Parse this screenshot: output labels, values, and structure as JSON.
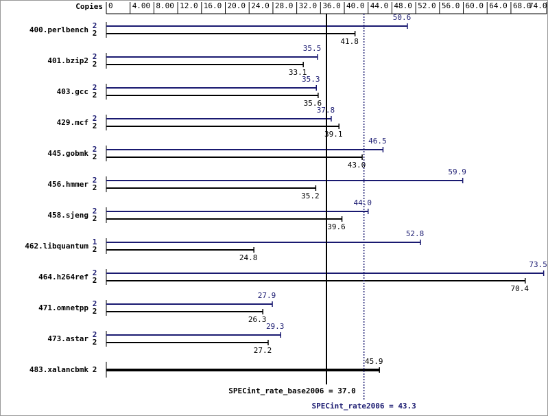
{
  "chart_data": {
    "type": "bar",
    "orientation": "horizontal",
    "axis_label": "Copies",
    "categories": [
      "400.perlbench",
      "401.bzip2",
      "403.gcc",
      "429.mcf",
      "445.gobmk",
      "456.hmmer",
      "458.sjeng",
      "462.libquantum",
      "464.h264ref",
      "471.omnetpp",
      "473.astar",
      "483.xalancbmk"
    ],
    "series": [
      {
        "color": "#191970",
        "copies": [
          2,
          2,
          2,
          2,
          2,
          2,
          2,
          1,
          2,
          2,
          2,
          null
        ],
        "values": [
          50.6,
          35.5,
          35.3,
          37.8,
          46.5,
          59.9,
          44.0,
          52.8,
          73.5,
          27.9,
          29.3,
          null
        ],
        "value_labels": [
          "50.6",
          "35.5",
          "35.3",
          "37.8",
          "46.5",
          "59.9",
          "44.0",
          "52.8",
          "73.5",
          "27.9",
          "29.3",
          null
        ]
      },
      {
        "color": "#000000",
        "copies": [
          2,
          2,
          2,
          2,
          2,
          2,
          2,
          2,
          2,
          2,
          2,
          2
        ],
        "values": [
          41.8,
          33.1,
          35.6,
          39.1,
          43.0,
          35.2,
          39.6,
          24.8,
          70.4,
          26.3,
          27.2,
          45.9
        ],
        "value_labels": [
          "41.8",
          "33.1",
          "35.6",
          "39.1",
          "43.0",
          "35.2",
          "39.6",
          "24.8",
          "70.4",
          "26.3",
          "27.2",
          "45.9"
        ]
      }
    ],
    "xlim": [
      0,
      74
    ],
    "xticks": [
      0,
      {
        "value": 4,
        "label": "4.00"
      },
      {
        "value": 8,
        "label": "8.00"
      },
      {
        "value": 12,
        "label": "12.0"
      },
      {
        "value": 16,
        "label": "16.0"
      },
      {
        "value": 20,
        "label": "20.0"
      },
      {
        "value": 24,
        "label": "24.0"
      },
      {
        "value": 28,
        "label": "28.0"
      },
      {
        "value": 32,
        "label": "32.0"
      },
      {
        "value": 36,
        "label": "36.0"
      },
      {
        "value": 40,
        "label": "40.0"
      },
      {
        "value": 44,
        "label": "44.0"
      },
      {
        "value": 48,
        "label": "48.0"
      },
      {
        "value": 52,
        "label": "52.0"
      },
      {
        "value": 56,
        "label": "56.0"
      },
      {
        "value": 60,
        "label": "60.0"
      },
      {
        "value": 64,
        "label": "64.0"
      },
      {
        "value": 68,
        "label": "68.0"
      },
      {
        "value": 74,
        "label": "74.0"
      }
    ],
    "base_line": {
      "label": "SPECint_rate_base2006 = 37.0",
      "value": 37.0,
      "color": "#000000"
    },
    "peak_line": {
      "label": "SPECint_rate2006 = 43.3",
      "value": 43.3,
      "color": "#191970"
    }
  }
}
